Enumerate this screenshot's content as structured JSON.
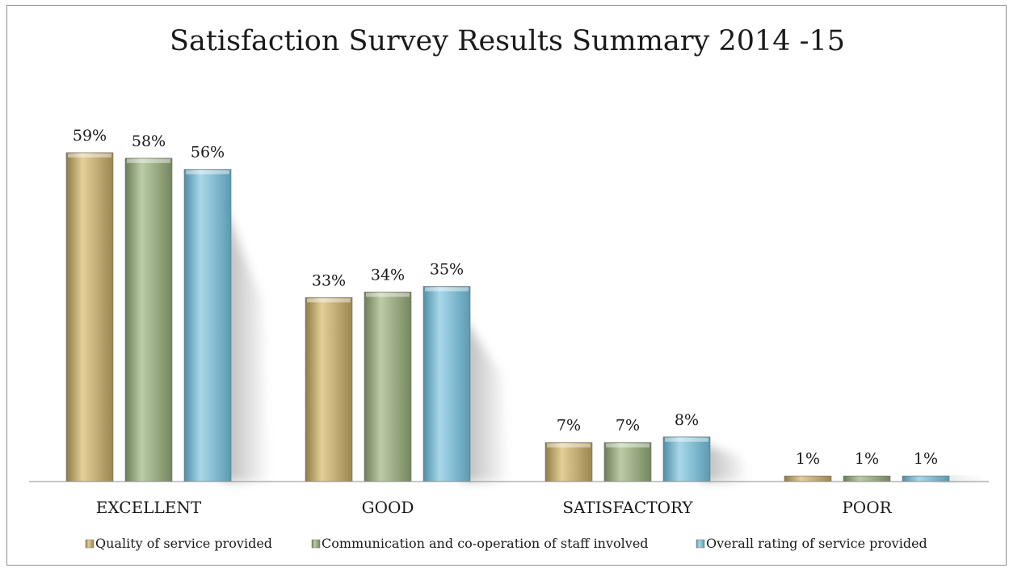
{
  "chart_data": {
    "type": "bar",
    "title": "Satisfaction Survey Results Summary 2014 -15",
    "categories": [
      "EXCELLENT",
      "GOOD",
      "SATISFACTORY",
      "POOR"
    ],
    "series": [
      {
        "name": "Quality of service provided",
        "values": [
          59,
          33,
          7,
          1
        ],
        "color": "#c8b27a"
      },
      {
        "name": "Communication and co-operation of staff involved",
        "values": [
          58,
          34,
          7,
          1
        ],
        "color": "#9fb08a"
      },
      {
        "name": "Overall rating of service provided",
        "values": [
          56,
          35,
          8,
          1
        ],
        "color": "#7fb7cc"
      }
    ],
    "value_suffix": "%",
    "ylim": [
      0,
      60
    ],
    "grid": false,
    "legend": "bottom"
  }
}
